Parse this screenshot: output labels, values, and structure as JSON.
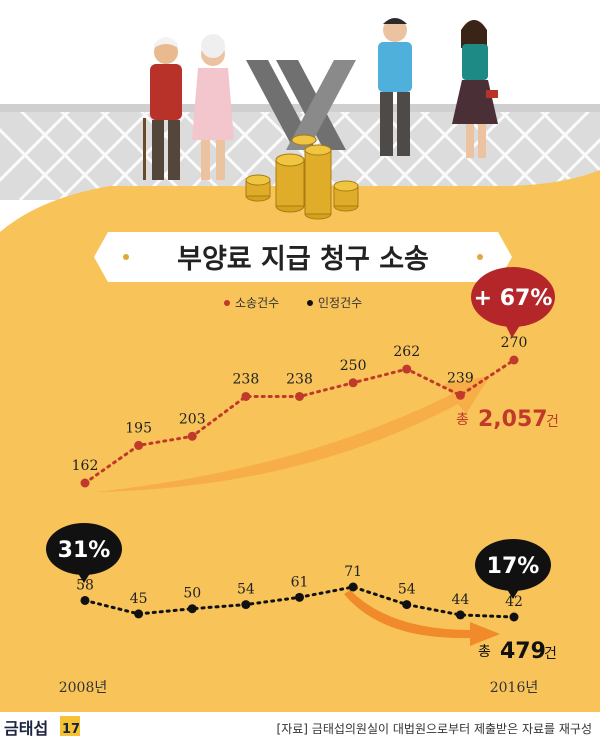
{
  "title": "부양료 지급 청구 소송",
  "colors": {
    "accent_red": "#c0392b",
    "accent_black": "#111111",
    "bg_orange": "#f8c45a"
  },
  "chart_data": {
    "type": "line",
    "x": [
      "2008",
      "2009",
      "2010",
      "2011",
      "2012",
      "2013",
      "2014",
      "2015",
      "2016"
    ],
    "x_labels": {
      "first": "2008년",
      "last": "2016년"
    },
    "legend_position": "top-center",
    "grid": false,
    "series": [
      {
        "name": "소송건수",
        "color": "#c0392b",
        "values": [
          162,
          195,
          203,
          238,
          238,
          250,
          262,
          239,
          270
        ],
        "total_label": "총",
        "total_value": "2,057",
        "total_unit": "건",
        "badge": "+ 67%"
      },
      {
        "name": "인정건수",
        "color": "#111111",
        "values": [
          58,
          45,
          50,
          54,
          61,
          71,
          54,
          44,
          42
        ],
        "total_label": "총",
        "total_value": "479",
        "total_unit": "건",
        "badge_start": "31%",
        "badge_end": "17%"
      }
    ]
  },
  "source": "[자료] 금태섭의원실이 대법원으로부터 제출받은 자료를 재구성",
  "logo": {
    "text": "금태섭",
    "suffix": "17"
  }
}
